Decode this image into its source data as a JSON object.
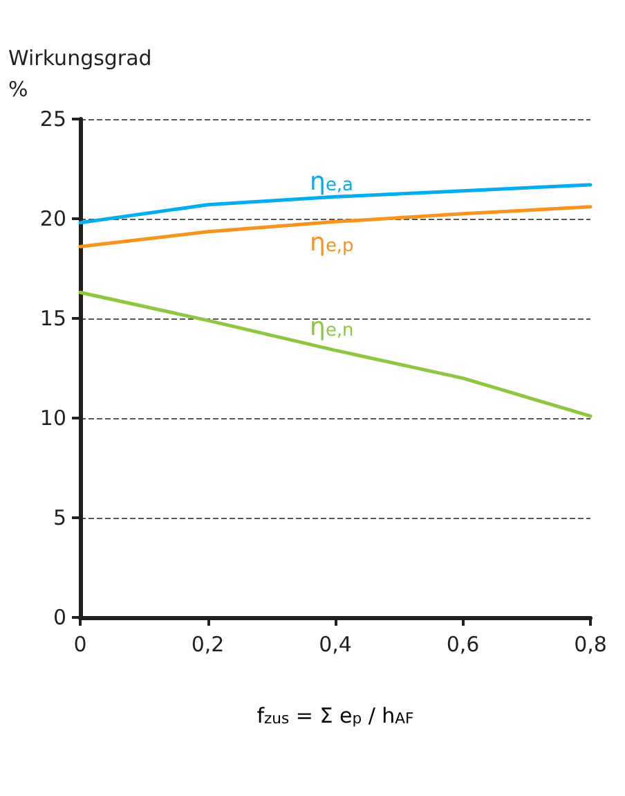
{
  "chart_data": {
    "type": "line",
    "xlabel": "f$_{zus}$ = Σ e$_{p}$ / h$_{AF}$",
    "ylabel": "Wirkungsgrad\n%",
    "x": [
      0,
      0.2,
      0.4,
      0.6,
      0.8
    ],
    "series": [
      {
        "name": "η$_{e,a}$",
        "color": "#00aeef",
        "values": [
          19.8,
          20.7,
          21.1,
          21.4,
          21.7
        ]
      },
      {
        "name": "η$_{e,p}$",
        "color": "#f7941d",
        "values": [
          18.6,
          19.35,
          19.85,
          20.25,
          20.6
        ]
      },
      {
        "name": "η$_{e,n}$",
        "color": "#8dc63f",
        "values": [
          16.3,
          14.9,
          13.4,
          12.0,
          10.1
        ]
      }
    ],
    "xlim": [
      0,
      0.8
    ],
    "xticks": [
      0,
      {
        "value": 0.2,
        "label": "0,2"
      },
      {
        "value": 0.4,
        "label": "0,4"
      },
      {
        "value": 0.6,
        "label": "0,6"
      },
      {
        "value": 0.8,
        "label": "0,8"
      }
    ],
    "ylim": [
      0,
      25
    ],
    "yticks": [
      0,
      5,
      10,
      15,
      20,
      25
    ],
    "grid": "y",
    "line_style": "solid",
    "marker": "none",
    "legend": false
  }
}
